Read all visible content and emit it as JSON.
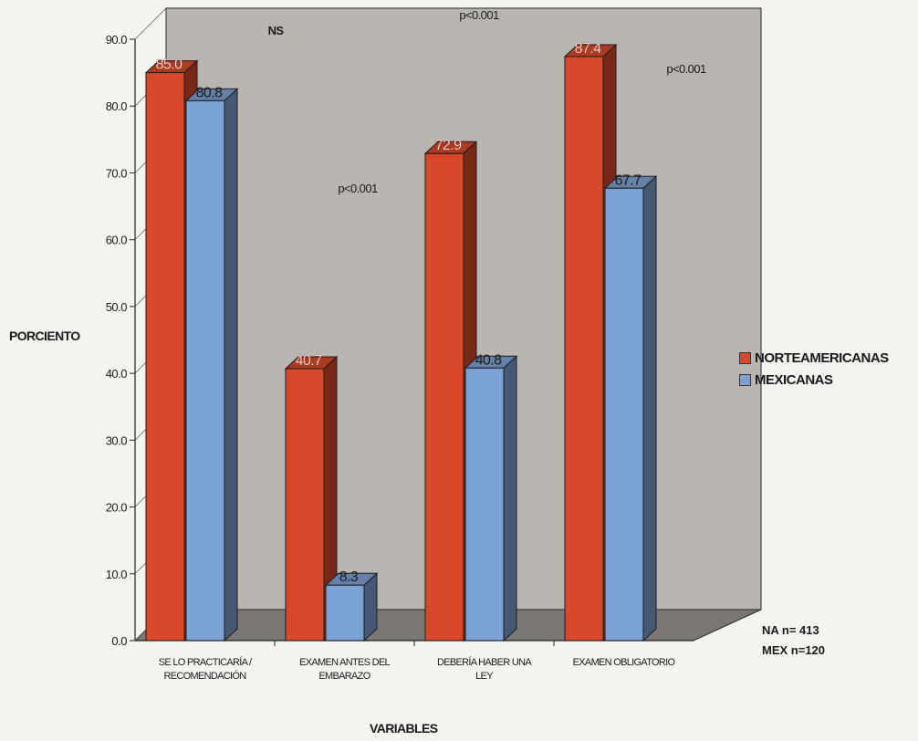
{
  "chart_data": {
    "type": "bar",
    "ylabel": "PORCIENTO",
    "xlabel": "VARIABLES",
    "ylim": [
      0,
      90
    ],
    "ytick_labels": [
      "0.0",
      "10.0",
      "20.0",
      "30.0",
      "40.0",
      "50.0",
      "60.0",
      "70.0",
      "80.0",
      "90.0"
    ],
    "categories": [
      [
        "SE LO PRACTICARÍA /",
        "RECOMENDACIÓN"
      ],
      [
        "EXAMEN ANTES DEL",
        "EMBARAZO"
      ],
      [
        "DEBERÍA HABER UNA",
        "LEY"
      ],
      [
        "EXAMEN  OBLIGATORIO"
      ]
    ],
    "series": [
      {
        "name": "NORTEAMERICANAS",
        "color": "#d8482a",
        "values": [
          85.0,
          40.7,
          72.9,
          87.4
        ],
        "labels": [
          "85.0",
          "40.7",
          "72.9",
          "87.4"
        ]
      },
      {
        "name": "MEXICANAS",
        "color": "#7ca1d3",
        "values": [
          80.8,
          8.3,
          40.8,
          67.7
        ],
        "labels": [
          "80.8",
          "8.3",
          "40.8",
          "67.7"
        ]
      }
    ],
    "annotations": [
      "NS",
      "p<0.001",
      "p<0.001",
      "p<0.001"
    ],
    "sample_sizes": [
      "NA  n= 413",
      "MEX  n=120"
    ],
    "legend_position": "right",
    "grid": false
  }
}
